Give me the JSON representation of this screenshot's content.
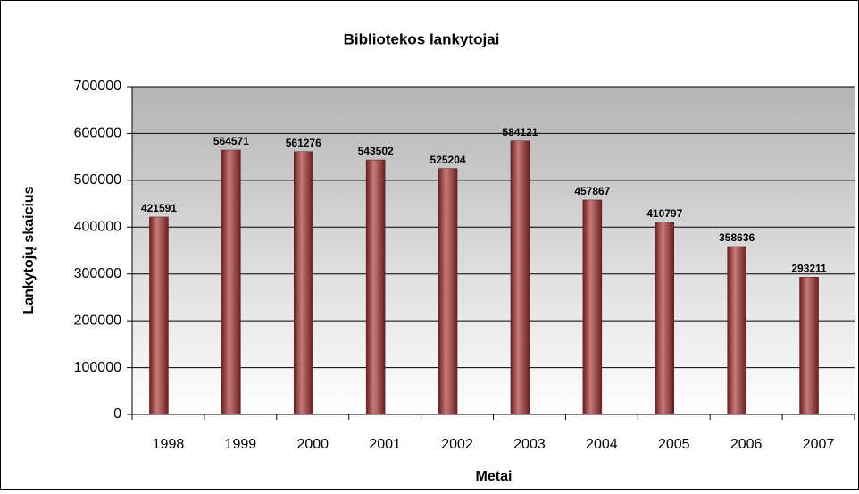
{
  "chart_data": {
    "type": "bar",
    "title": "Bibliotekos lankytojai",
    "x_label": "Metai",
    "y_label": "Lankytojų skaicius",
    "categories": [
      "1998",
      "1999",
      "2000",
      "2001",
      "2002",
      "2003",
      "2004",
      "2005",
      "2006",
      "2007"
    ],
    "values": [
      421591,
      564571,
      561276,
      543502,
      525204,
      584121,
      457867,
      410797,
      358636,
      293211
    ],
    "color": "#993333",
    "ylim": [
      0,
      700000
    ],
    "yticks": [
      0,
      100000,
      200000,
      300000,
      400000,
      500000,
      600000,
      700000
    ],
    "grid": true
  }
}
